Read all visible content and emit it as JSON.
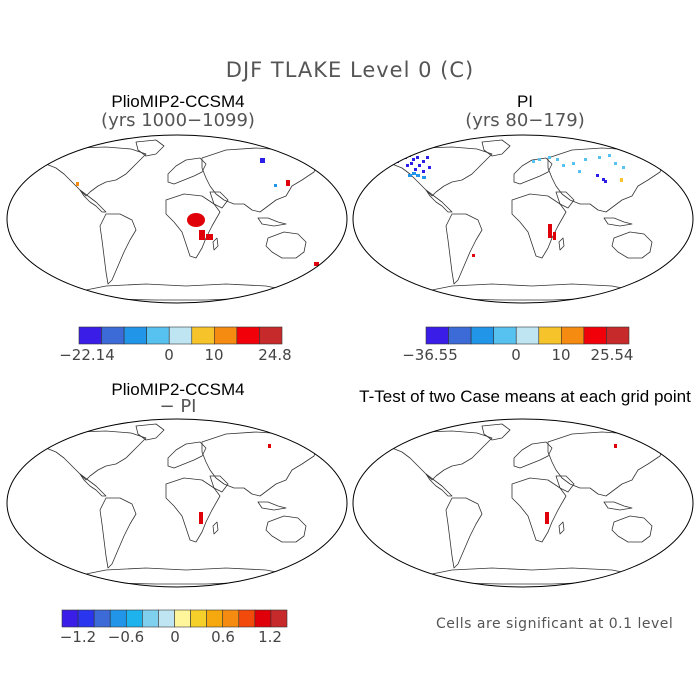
{
  "figure": {
    "title": "DJF TLAKE Level 0 (C)"
  },
  "panels": [
    {
      "title": "PlioMIP2-CCSM4",
      "subtitle": "(yrs 1000−1099)",
      "colorbar": {
        "colors": [
          "#3a1ee8",
          "#3c6ad6",
          "#2195e8",
          "#57c1ef",
          "#bfe5f3",
          "#f6c42a",
          "#f58b11",
          "#f2000a",
          "#c72a2a"
        ],
        "labels": [
          "−22.14",
          "0",
          "10",
          "24.8"
        ]
      }
    },
    {
      "title": "PI",
      "subtitle": "(yrs 80−179)",
      "colorbar": {
        "colors": [
          "#3a1ee8",
          "#3c6ad6",
          "#2195e8",
          "#57c1ef",
          "#bfe5f3",
          "#f6c42a",
          "#f58b11",
          "#f2000a",
          "#c72a2a"
        ],
        "labels": [
          "−36.55",
          "0",
          "10",
          "25.54"
        ]
      }
    },
    {
      "title": "PlioMIP2-CCSM4",
      "subtitle": "− PI",
      "colorbar": {
        "colors": [
          "#3a1ee8",
          "#2a35f0",
          "#3c6ad6",
          "#2195e8",
          "#1fb3ee",
          "#7fd0ef",
          "#bfe5f3",
          "#fff59a",
          "#f6d02a",
          "#f5a90e",
          "#f58b11",
          "#f24a0a",
          "#e0000a",
          "#c72a2a"
        ],
        "labels": [
          "−1.2",
          "−0.6",
          "0",
          "0.6",
          "1.2"
        ]
      }
    },
    {
      "title": "T-Test of two Case means at each grid point",
      "subtitle": ""
    }
  ],
  "footnote": "Cells are significant at 0.1 level",
  "colors": {
    "red": "#e0000a",
    "blue": "#2a1ee8",
    "coast": "#333333"
  }
}
